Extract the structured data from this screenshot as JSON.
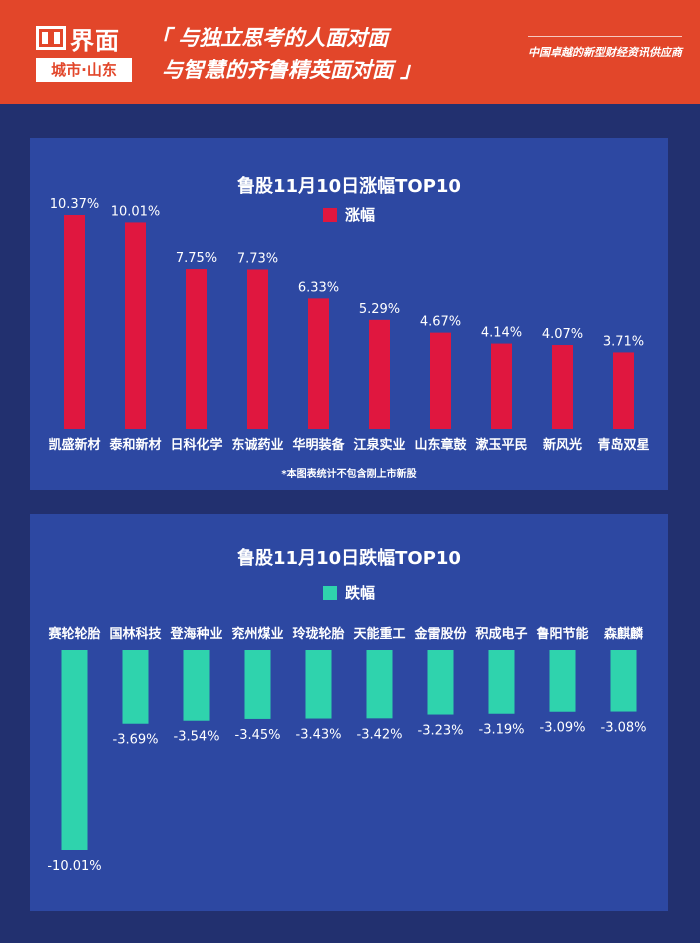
{
  "header": {
    "brand": "界面",
    "sub_brand": "城市·山东",
    "slogan_line1": "「 与独立思考的人面对面",
    "slogan_line2": "与智慧的齐鲁精英面对面 」",
    "tagline": "中国卓越的新型财经资讯供应商"
  },
  "colors": {
    "header_bg": "#e2462a",
    "page_bg": "#22306f",
    "panel_bg": "#2d48a2",
    "gain_bar": "#e0173f",
    "loss_bar": "#2fd3ad"
  },
  "footnote": "*本图表统计不包含刚上市新股",
  "chart_data": [
    {
      "type": "bar",
      "title": "鲁股11月10日涨幅TOP10",
      "categories": [
        "凯盛新材",
        "泰和新材",
        "日科化学",
        "东诚药业",
        "华明装备",
        "江泉实业",
        "山东章鼓",
        "漱玉平民",
        "新风光",
        "青岛双星"
      ],
      "series": [
        {
          "name": "涨幅",
          "values": [
            10.37,
            10.01,
            7.75,
            7.73,
            6.33,
            5.29,
            4.67,
            4.14,
            4.07,
            3.71
          ]
        }
      ],
      "value_labels": [
        "10.37%",
        "10.01%",
        "7.75%",
        "7.73%",
        "6.33%",
        "5.29%",
        "4.67%",
        "4.14%",
        "4.07%",
        "3.71%"
      ],
      "ylim": [
        0,
        10.37
      ],
      "grid": false,
      "legend": "top-center"
    },
    {
      "type": "bar",
      "title": "鲁股11月10日跌幅TOP10",
      "categories": [
        "赛轮轮胎",
        "国林科技",
        "登海种业",
        "兖州煤业",
        "玲珑轮胎",
        "天能重工",
        "金雷股份",
        "积成电子",
        "鲁阳节能",
        "森麒麟"
      ],
      "series": [
        {
          "name": "跌幅",
          "values": [
            -10.01,
            -3.69,
            -3.54,
            -3.45,
            -3.43,
            -3.42,
            -3.23,
            -3.19,
            -3.09,
            -3.08
          ]
        }
      ],
      "value_labels": [
        "-10.01%",
        "-3.69%",
        "-3.54%",
        "-3.45%",
        "-3.43%",
        "-3.42%",
        "-3.23%",
        "-3.19%",
        "-3.09%",
        "-3.08%"
      ],
      "ylim": [
        -10.01,
        0
      ],
      "grid": false,
      "legend": "top-center"
    }
  ]
}
